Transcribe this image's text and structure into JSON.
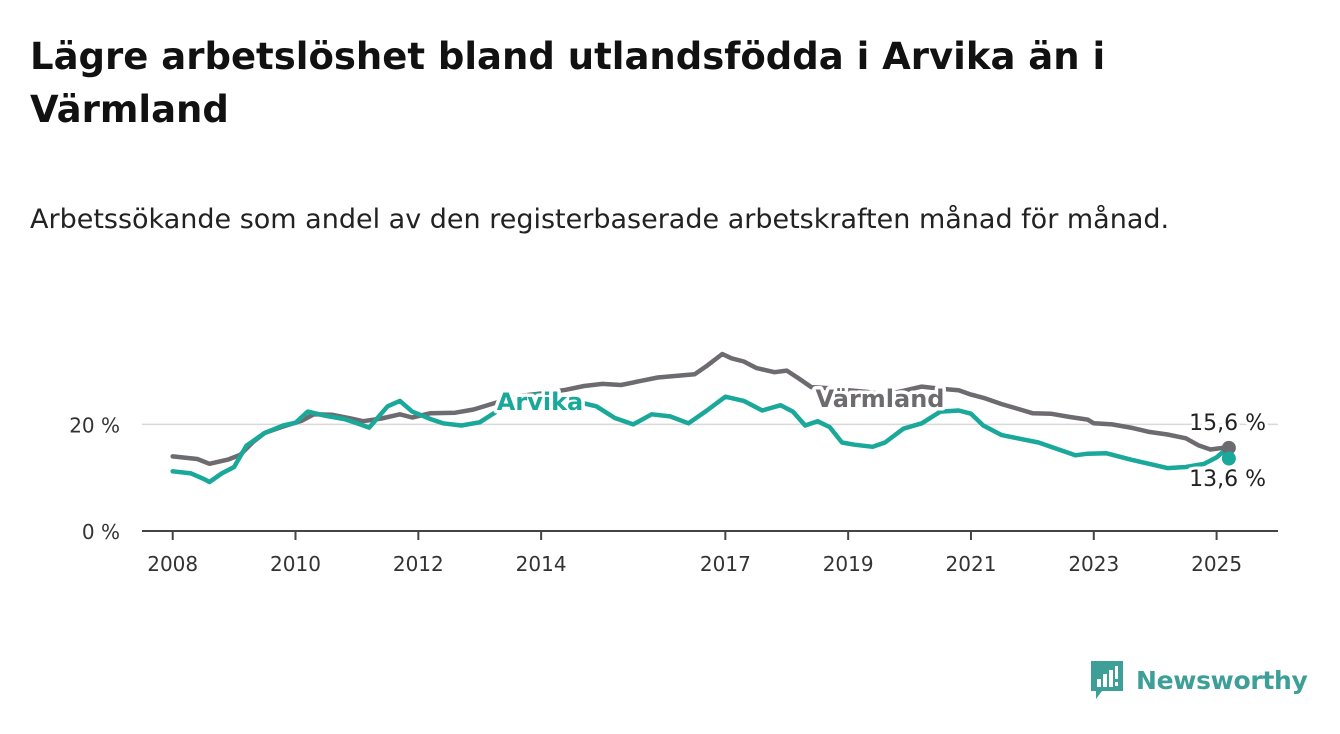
{
  "title": "Lägre arbetslöshet bland utlandsfödda i Arvika än i Värmland",
  "subtitle": "Arbetssökande som andel av den registerbaserade arbetskraften månad för månad.",
  "brand": {
    "name": "Newsworthy",
    "icon": "newsworthy-logo-icon",
    "color": "#3d9f98"
  },
  "chart_data": {
    "type": "line",
    "title": "Lägre arbetslöshet bland utlandsfödda i Arvika än i Värmland",
    "subtitle": "Arbetssökande som andel av den registerbaserade arbetskraften månad för månad.",
    "xlabel": "",
    "ylabel": "",
    "x_ticks": [
      "2008",
      "2010",
      "2012",
      "2014",
      "2017",
      "2019",
      "2021",
      "2023",
      "2025"
    ],
    "x_range": [
      2007.5,
      2026
    ],
    "y_ticks": [
      {
        "value": 0,
        "label": "0 %"
      },
      {
        "value": 20,
        "label": "20 %"
      }
    ],
    "ylim": [
      0,
      36
    ],
    "grid": true,
    "series": [
      {
        "name": "Värmland",
        "color": "#6e6b70",
        "end_label": "15,6 %",
        "points": [
          [
            2008.0,
            14.0
          ],
          [
            2008.4,
            13.5
          ],
          [
            2008.6,
            12.6
          ],
          [
            2008.9,
            13.4
          ],
          [
            2009.1,
            14.3
          ],
          [
            2009.3,
            16.6
          ],
          [
            2009.5,
            18.4
          ],
          [
            2009.8,
            19.6
          ],
          [
            2010.1,
            20.7
          ],
          [
            2010.3,
            21.9
          ],
          [
            2010.6,
            21.8
          ],
          [
            2010.9,
            21.1
          ],
          [
            2011.1,
            20.6
          ],
          [
            2011.4,
            21.1
          ],
          [
            2011.7,
            21.9
          ],
          [
            2011.9,
            21.3
          ],
          [
            2012.2,
            22.1
          ],
          [
            2012.6,
            22.2
          ],
          [
            2012.9,
            22.8
          ],
          [
            2013.3,
            24.2
          ],
          [
            2013.7,
            25.4
          ],
          [
            2014.0,
            25.8
          ],
          [
            2014.4,
            26.5
          ],
          [
            2014.7,
            27.2
          ],
          [
            2015.0,
            27.6
          ],
          [
            2015.3,
            27.4
          ],
          [
            2015.6,
            28.1
          ],
          [
            2015.9,
            28.8
          ],
          [
            2016.2,
            29.1
          ],
          [
            2016.5,
            29.4
          ],
          [
            2016.7,
            31.0
          ],
          [
            2016.95,
            33.2
          ],
          [
            2017.1,
            32.4
          ],
          [
            2017.3,
            31.8
          ],
          [
            2017.5,
            30.6
          ],
          [
            2017.8,
            29.8
          ],
          [
            2018.0,
            30.1
          ],
          [
            2018.2,
            28.6
          ],
          [
            2018.4,
            27.0
          ],
          [
            2018.7,
            26.8
          ],
          [
            2019.0,
            26.4
          ],
          [
            2019.3,
            26.1
          ],
          [
            2019.6,
            25.6
          ],
          [
            2019.9,
            26.3
          ],
          [
            2020.2,
            27.1
          ],
          [
            2020.5,
            26.7
          ],
          [
            2020.8,
            26.4
          ],
          [
            2021.0,
            25.6
          ],
          [
            2021.2,
            25.0
          ],
          [
            2021.5,
            23.8
          ],
          [
            2021.8,
            22.8
          ],
          [
            2022.0,
            22.1
          ],
          [
            2022.3,
            22.0
          ],
          [
            2022.6,
            21.4
          ],
          [
            2022.9,
            20.9
          ],
          [
            2023.0,
            20.2
          ],
          [
            2023.3,
            20.0
          ],
          [
            2023.6,
            19.4
          ],
          [
            2023.9,
            18.6
          ],
          [
            2024.2,
            18.1
          ],
          [
            2024.5,
            17.4
          ],
          [
            2024.7,
            16.1
          ],
          [
            2024.9,
            15.3
          ],
          [
            2025.1,
            15.6
          ],
          [
            2025.2,
            15.6
          ]
        ]
      },
      {
        "name": "Arvika",
        "color": "#1aa89a",
        "end_label": "13,6 %",
        "points": [
          [
            2008.0,
            11.2
          ],
          [
            2008.3,
            10.8
          ],
          [
            2008.5,
            9.8
          ],
          [
            2008.6,
            9.2
          ],
          [
            2008.8,
            10.8
          ],
          [
            2009.0,
            12.0
          ],
          [
            2009.2,
            16.0
          ],
          [
            2009.5,
            18.4
          ],
          [
            2009.8,
            19.8
          ],
          [
            2010.0,
            20.3
          ],
          [
            2010.2,
            22.4
          ],
          [
            2010.5,
            21.6
          ],
          [
            2010.8,
            21.0
          ],
          [
            2011.0,
            20.2
          ],
          [
            2011.2,
            19.4
          ],
          [
            2011.5,
            23.4
          ],
          [
            2011.7,
            24.4
          ],
          [
            2011.9,
            22.4
          ],
          [
            2012.2,
            21.0
          ],
          [
            2012.4,
            20.2
          ],
          [
            2012.7,
            19.8
          ],
          [
            2013.0,
            20.4
          ],
          [
            2013.3,
            22.6
          ],
          [
            2013.6,
            24.6
          ],
          [
            2013.9,
            25.6
          ],
          [
            2014.2,
            25.3
          ],
          [
            2014.6,
            24.2
          ],
          [
            2014.9,
            23.4
          ],
          [
            2015.2,
            21.2
          ],
          [
            2015.5,
            20.0
          ],
          [
            2015.8,
            21.9
          ],
          [
            2016.1,
            21.5
          ],
          [
            2016.4,
            20.2
          ],
          [
            2016.7,
            22.6
          ],
          [
            2017.0,
            25.2
          ],
          [
            2017.3,
            24.4
          ],
          [
            2017.6,
            22.6
          ],
          [
            2017.9,
            23.6
          ],
          [
            2018.1,
            22.4
          ],
          [
            2018.3,
            19.8
          ],
          [
            2018.5,
            20.6
          ],
          [
            2018.7,
            19.5
          ],
          [
            2018.9,
            16.6
          ],
          [
            2019.1,
            16.2
          ],
          [
            2019.4,
            15.8
          ],
          [
            2019.6,
            16.6
          ],
          [
            2019.9,
            19.2
          ],
          [
            2020.2,
            20.2
          ],
          [
            2020.5,
            22.4
          ],
          [
            2020.8,
            22.6
          ],
          [
            2021.0,
            22.0
          ],
          [
            2021.2,
            19.8
          ],
          [
            2021.5,
            18.0
          ],
          [
            2021.8,
            17.3
          ],
          [
            2022.1,
            16.6
          ],
          [
            2022.4,
            15.4
          ],
          [
            2022.7,
            14.2
          ],
          [
            2022.9,
            14.5
          ],
          [
            2023.2,
            14.6
          ],
          [
            2023.6,
            13.4
          ],
          [
            2023.9,
            12.6
          ],
          [
            2024.2,
            11.8
          ],
          [
            2024.5,
            12.0
          ],
          [
            2024.8,
            12.6
          ],
          [
            2025.0,
            13.8
          ],
          [
            2025.1,
            14.8
          ],
          [
            2025.2,
            13.6
          ]
        ]
      }
    ]
  }
}
